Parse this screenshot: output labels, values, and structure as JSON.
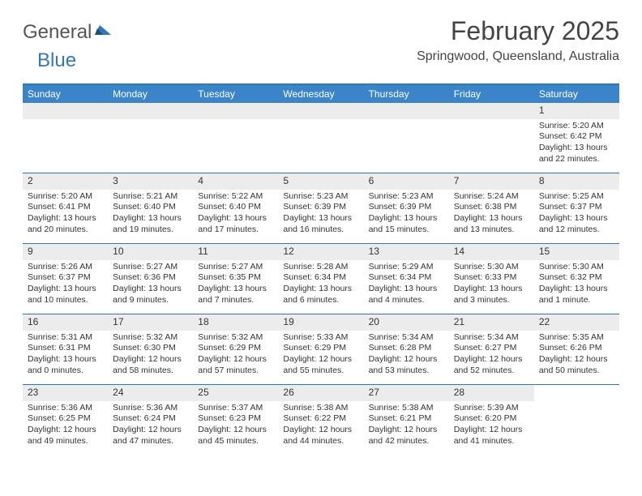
{
  "logo": {
    "text1": "General",
    "text2": "Blue"
  },
  "title": "February 2025",
  "subtitle": "Springwood, Queensland, Australia",
  "colors": {
    "header_bar": "#3a85c9",
    "border": "#2f79b9",
    "daynum_bg": "#ececec",
    "spacer_bg": "#f0f0f0",
    "text": "#333333",
    "logo_gray": "#555555",
    "logo_blue": "#2f79b9"
  },
  "weekdays": [
    "Sunday",
    "Monday",
    "Tuesday",
    "Wednesday",
    "Thursday",
    "Friday",
    "Saturday"
  ],
  "weeks": [
    [
      {
        "n": "",
        "empty": true
      },
      {
        "n": "",
        "empty": true
      },
      {
        "n": "",
        "empty": true
      },
      {
        "n": "",
        "empty": true
      },
      {
        "n": "",
        "empty": true
      },
      {
        "n": "",
        "empty": true
      },
      {
        "n": "1",
        "sunrise": "Sunrise: 5:20 AM",
        "sunset": "Sunset: 6:42 PM",
        "daylight1": "Daylight: 13 hours",
        "daylight2": "and 22 minutes."
      }
    ],
    [
      {
        "n": "2",
        "sunrise": "Sunrise: 5:20 AM",
        "sunset": "Sunset: 6:41 PM",
        "daylight1": "Daylight: 13 hours",
        "daylight2": "and 20 minutes."
      },
      {
        "n": "3",
        "sunrise": "Sunrise: 5:21 AM",
        "sunset": "Sunset: 6:40 PM",
        "daylight1": "Daylight: 13 hours",
        "daylight2": "and 19 minutes."
      },
      {
        "n": "4",
        "sunrise": "Sunrise: 5:22 AM",
        "sunset": "Sunset: 6:40 PM",
        "daylight1": "Daylight: 13 hours",
        "daylight2": "and 17 minutes."
      },
      {
        "n": "5",
        "sunrise": "Sunrise: 5:23 AM",
        "sunset": "Sunset: 6:39 PM",
        "daylight1": "Daylight: 13 hours",
        "daylight2": "and 16 minutes."
      },
      {
        "n": "6",
        "sunrise": "Sunrise: 5:23 AM",
        "sunset": "Sunset: 6:39 PM",
        "daylight1": "Daylight: 13 hours",
        "daylight2": "and 15 minutes."
      },
      {
        "n": "7",
        "sunrise": "Sunrise: 5:24 AM",
        "sunset": "Sunset: 6:38 PM",
        "daylight1": "Daylight: 13 hours",
        "daylight2": "and 13 minutes."
      },
      {
        "n": "8",
        "sunrise": "Sunrise: 5:25 AM",
        "sunset": "Sunset: 6:37 PM",
        "daylight1": "Daylight: 13 hours",
        "daylight2": "and 12 minutes."
      }
    ],
    [
      {
        "n": "9",
        "sunrise": "Sunrise: 5:26 AM",
        "sunset": "Sunset: 6:37 PM",
        "daylight1": "Daylight: 13 hours",
        "daylight2": "and 10 minutes."
      },
      {
        "n": "10",
        "sunrise": "Sunrise: 5:27 AM",
        "sunset": "Sunset: 6:36 PM",
        "daylight1": "Daylight: 13 hours",
        "daylight2": "and 9 minutes."
      },
      {
        "n": "11",
        "sunrise": "Sunrise: 5:27 AM",
        "sunset": "Sunset: 6:35 PM",
        "daylight1": "Daylight: 13 hours",
        "daylight2": "and 7 minutes."
      },
      {
        "n": "12",
        "sunrise": "Sunrise: 5:28 AM",
        "sunset": "Sunset: 6:34 PM",
        "daylight1": "Daylight: 13 hours",
        "daylight2": "and 6 minutes."
      },
      {
        "n": "13",
        "sunrise": "Sunrise: 5:29 AM",
        "sunset": "Sunset: 6:34 PM",
        "daylight1": "Daylight: 13 hours",
        "daylight2": "and 4 minutes."
      },
      {
        "n": "14",
        "sunrise": "Sunrise: 5:30 AM",
        "sunset": "Sunset: 6:33 PM",
        "daylight1": "Daylight: 13 hours",
        "daylight2": "and 3 minutes."
      },
      {
        "n": "15",
        "sunrise": "Sunrise: 5:30 AM",
        "sunset": "Sunset: 6:32 PM",
        "daylight1": "Daylight: 13 hours",
        "daylight2": "and 1 minute."
      }
    ],
    [
      {
        "n": "16",
        "sunrise": "Sunrise: 5:31 AM",
        "sunset": "Sunset: 6:31 PM",
        "daylight1": "Daylight: 13 hours",
        "daylight2": "and 0 minutes."
      },
      {
        "n": "17",
        "sunrise": "Sunrise: 5:32 AM",
        "sunset": "Sunset: 6:30 PM",
        "daylight1": "Daylight: 12 hours",
        "daylight2": "and 58 minutes."
      },
      {
        "n": "18",
        "sunrise": "Sunrise: 5:32 AM",
        "sunset": "Sunset: 6:29 PM",
        "daylight1": "Daylight: 12 hours",
        "daylight2": "and 57 minutes."
      },
      {
        "n": "19",
        "sunrise": "Sunrise: 5:33 AM",
        "sunset": "Sunset: 6:29 PM",
        "daylight1": "Daylight: 12 hours",
        "daylight2": "and 55 minutes."
      },
      {
        "n": "20",
        "sunrise": "Sunrise: 5:34 AM",
        "sunset": "Sunset: 6:28 PM",
        "daylight1": "Daylight: 12 hours",
        "daylight2": "and 53 minutes."
      },
      {
        "n": "21",
        "sunrise": "Sunrise: 5:34 AM",
        "sunset": "Sunset: 6:27 PM",
        "daylight1": "Daylight: 12 hours",
        "daylight2": "and 52 minutes."
      },
      {
        "n": "22",
        "sunrise": "Sunrise: 5:35 AM",
        "sunset": "Sunset: 6:26 PM",
        "daylight1": "Daylight: 12 hours",
        "daylight2": "and 50 minutes."
      }
    ],
    [
      {
        "n": "23",
        "sunrise": "Sunrise: 5:36 AM",
        "sunset": "Sunset: 6:25 PM",
        "daylight1": "Daylight: 12 hours",
        "daylight2": "and 49 minutes."
      },
      {
        "n": "24",
        "sunrise": "Sunrise: 5:36 AM",
        "sunset": "Sunset: 6:24 PM",
        "daylight1": "Daylight: 12 hours",
        "daylight2": "and 47 minutes."
      },
      {
        "n": "25",
        "sunrise": "Sunrise: 5:37 AM",
        "sunset": "Sunset: 6:23 PM",
        "daylight1": "Daylight: 12 hours",
        "daylight2": "and 45 minutes."
      },
      {
        "n": "26",
        "sunrise": "Sunrise: 5:38 AM",
        "sunset": "Sunset: 6:22 PM",
        "daylight1": "Daylight: 12 hours",
        "daylight2": "and 44 minutes."
      },
      {
        "n": "27",
        "sunrise": "Sunrise: 5:38 AM",
        "sunset": "Sunset: 6:21 PM",
        "daylight1": "Daylight: 12 hours",
        "daylight2": "and 42 minutes."
      },
      {
        "n": "28",
        "sunrise": "Sunrise: 5:39 AM",
        "sunset": "Sunset: 6:20 PM",
        "daylight1": "Daylight: 12 hours",
        "daylight2": "and 41 minutes."
      },
      {
        "n": "",
        "empty": true
      }
    ]
  ]
}
